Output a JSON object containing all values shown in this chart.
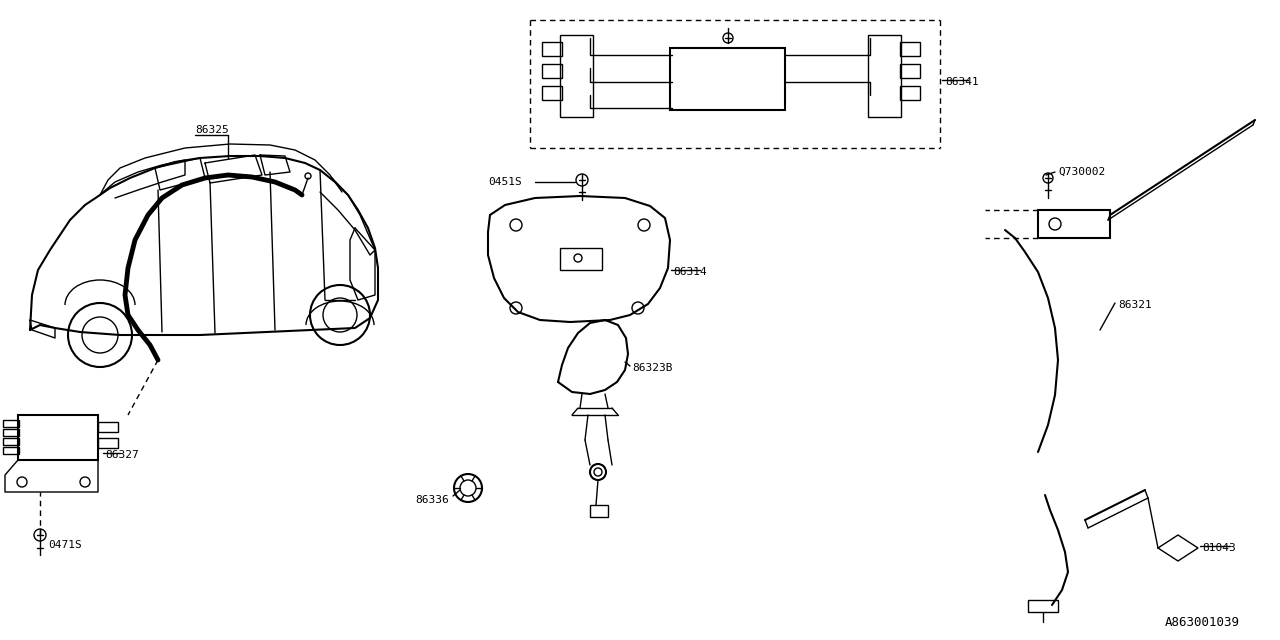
{
  "bg_color": "#ffffff",
  "line_color": "#000000",
  "fig_width": 12.8,
  "fig_height": 6.4,
  "diagram_id": "A863001039",
  "parts": [
    {
      "id": "86325",
      "label": "86325"
    },
    {
      "id": "86327",
      "label": "86327"
    },
    {
      "id": "0471S",
      "label": "0471S"
    },
    {
      "id": "0451S",
      "label": "0451S"
    },
    {
      "id": "86314",
      "label": "86314"
    },
    {
      "id": "86341",
      "label": "86341"
    },
    {
      "id": "86323B",
      "label": "86323B"
    },
    {
      "id": "86336",
      "label": "86336"
    },
    {
      "id": "86321",
      "label": "86321"
    },
    {
      "id": "Q730002",
      "label": "Q730002"
    },
    {
      "id": "81043",
      "label": "81043"
    }
  ]
}
